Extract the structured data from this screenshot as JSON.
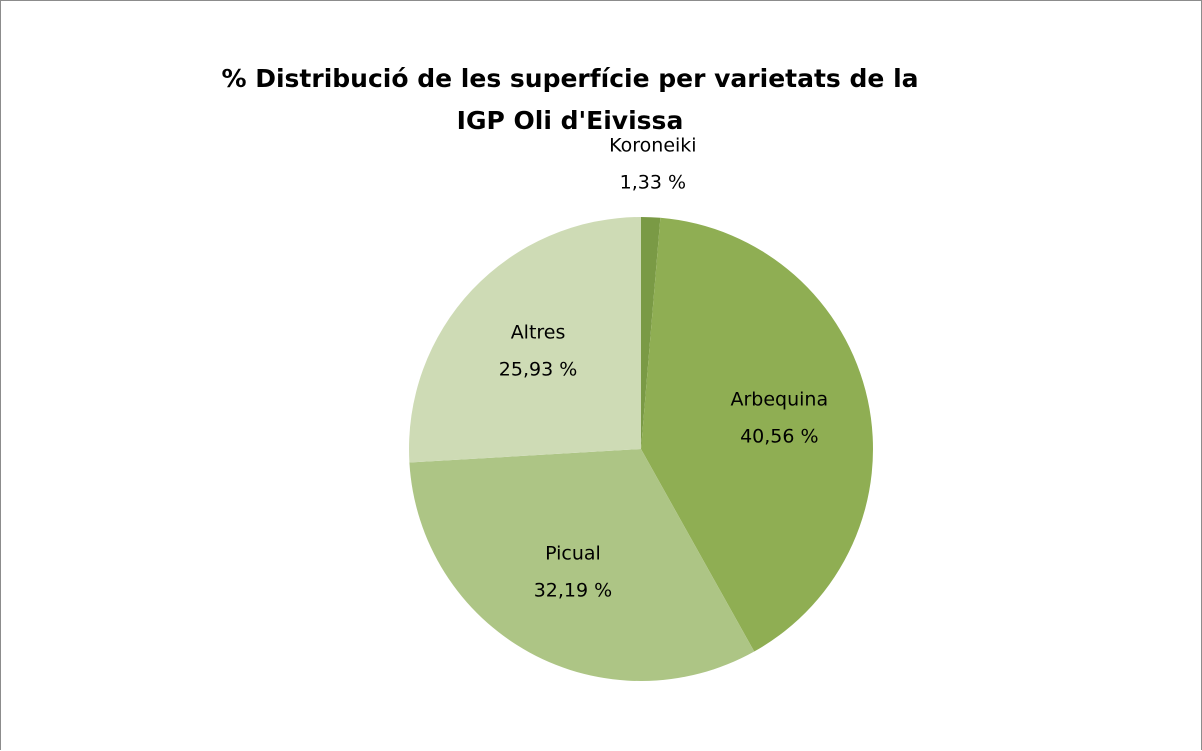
{
  "chart_data": {
    "type": "pie",
    "title": "% Distribució de les superfície per varietats de la IGP Oli d'Eivissa",
    "categories": [
      "Koroneiki",
      "Arbequina",
      "Picual",
      "Altres"
    ],
    "values": [
      1.33,
      40.56,
      32.19,
      25.93
    ],
    "value_labels": [
      "1,33 %",
      "40,56 %",
      "32,19 %",
      "25,93 %"
    ],
    "colors": [
      "#7a9a45",
      "#8fae53",
      "#adc585",
      "#cedbb5"
    ]
  }
}
